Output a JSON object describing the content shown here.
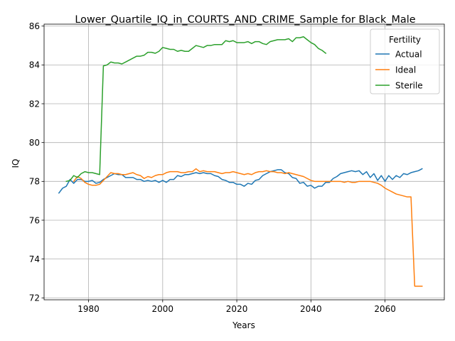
{
  "chart_data": {
    "type": "line",
    "title": "Lower_Quartile_IQ_in_COURTS_AND_CRIME_Sample for Black_Male",
    "xlabel": "Years",
    "ylabel": "IQ",
    "xlim": [
      1968,
      2076
    ],
    "ylim": [
      71.9,
      86.1
    ],
    "xticks": [
      1980,
      2000,
      2020,
      2040,
      2060
    ],
    "yticks": [
      72,
      74,
      76,
      78,
      80,
      82,
      84,
      86
    ],
    "grid": true,
    "legend": {
      "title": "Fertility",
      "placement": "top-right"
    },
    "series": [
      {
        "name": "Actual",
        "color": "#1f77b4",
        "x": [
          1972,
          1973,
          1974,
          1975,
          1976,
          1977,
          1978,
          1979,
          1980,
          1981,
          1982,
          1983,
          1984,
          1985,
          1986,
          1987,
          1988,
          1989,
          1990,
          1991,
          1992,
          1993,
          1994,
          1995,
          1996,
          1997,
          1998,
          1999,
          2000,
          2001,
          2002,
          2003,
          2004,
          2005,
          2006,
          2007,
          2008,
          2009,
          2010,
          2011,
          2012,
          2013,
          2014,
          2015,
          2016,
          2017,
          2018,
          2019,
          2020,
          2021,
          2022,
          2023,
          2024,
          2025,
          2026,
          2027,
          2028,
          2029,
          2030,
          2031,
          2032,
          2033,
          2034,
          2035,
          2036,
          2037,
          2038,
          2039,
          2040,
          2041,
          2042,
          2043,
          2044,
          2045,
          2046,
          2047,
          2048,
          2049,
          2050,
          2051,
          2052,
          2053,
          2054,
          2055,
          2056,
          2057,
          2058,
          2059,
          2060,
          2061,
          2062,
          2063,
          2064,
          2065,
          2066,
          2067,
          2068,
          2069,
          2070
        ],
        "values": [
          77.4,
          77.65,
          77.75,
          78.1,
          77.9,
          78.1,
          78.1,
          78.0,
          78.0,
          78.05,
          77.9,
          77.95,
          78.1,
          78.2,
          78.3,
          78.4,
          78.35,
          78.35,
          78.2,
          78.2,
          78.2,
          78.1,
          78.1,
          78.0,
          78.05,
          78.0,
          78.05,
          77.95,
          78.05,
          77.95,
          78.1,
          78.1,
          78.3,
          78.25,
          78.35,
          78.35,
          78.4,
          78.45,
          78.4,
          78.45,
          78.4,
          78.4,
          78.3,
          78.25,
          78.1,
          78.05,
          77.95,
          77.95,
          77.85,
          77.85,
          77.75,
          77.9,
          77.85,
          78.05,
          78.1,
          78.3,
          78.4,
          78.5,
          78.55,
          78.6,
          78.6,
          78.45,
          78.4,
          78.2,
          78.15,
          77.9,
          77.95,
          77.75,
          77.8,
          77.65,
          77.75,
          77.75,
          77.95,
          77.95,
          78.15,
          78.25,
          78.4,
          78.45,
          78.5,
          78.55,
          78.5,
          78.55,
          78.35,
          78.5,
          78.2,
          78.4,
          78.05,
          78.3,
          78.0,
          78.3,
          78.1,
          78.3,
          78.2,
          78.4,
          78.35,
          78.45,
          78.5,
          78.55,
          78.65
        ]
      },
      {
        "name": "Ideal",
        "color": "#ff7f0e",
        "x": [
          1976,
          1977,
          1978,
          1979,
          1980,
          1981,
          1982,
          1983,
          1984,
          1985,
          1986,
          1987,
          1988,
          1989,
          1990,
          1991,
          1992,
          1993,
          1994,
          1995,
          1996,
          1997,
          1998,
          1999,
          2000,
          2001,
          2002,
          2003,
          2004,
          2005,
          2006,
          2007,
          2008,
          2009,
          2010,
          2011,
          2012,
          2013,
          2014,
          2015,
          2016,
          2017,
          2018,
          2019,
          2020,
          2021,
          2022,
          2023,
          2024,
          2025,
          2026,
          2027,
          2028,
          2029,
          2030,
          2031,
          2032,
          2033,
          2034,
          2035,
          2036,
          2037,
          2038,
          2039,
          2040,
          2041,
          2042,
          2043,
          2044,
          2045,
          2046,
          2047,
          2048,
          2049,
          2050,
          2051,
          2052,
          2053,
          2054,
          2055,
          2056,
          2057,
          2058,
          2059,
          2060,
          2061,
          2062,
          2063,
          2064,
          2065,
          2066,
          2067,
          2068,
          2069,
          2070
        ],
        "values": [
          78.0,
          78.25,
          78.15,
          77.95,
          77.85,
          77.8,
          77.8,
          77.85,
          78.05,
          78.25,
          78.45,
          78.4,
          78.4,
          78.35,
          78.35,
          78.4,
          78.45,
          78.35,
          78.3,
          78.15,
          78.25,
          78.2,
          78.3,
          78.35,
          78.35,
          78.45,
          78.5,
          78.5,
          78.5,
          78.45,
          78.45,
          78.5,
          78.5,
          78.65,
          78.5,
          78.55,
          78.5,
          78.5,
          78.5,
          78.45,
          78.4,
          78.45,
          78.45,
          78.5,
          78.45,
          78.4,
          78.35,
          78.4,
          78.35,
          78.45,
          78.5,
          78.5,
          78.55,
          78.5,
          78.5,
          78.45,
          78.45,
          78.4,
          78.45,
          78.4,
          78.35,
          78.3,
          78.25,
          78.15,
          78.05,
          78.0,
          78.0,
          78.0,
          78.0,
          78.0,
          78.0,
          78.0,
          78.0,
          77.95,
          78.0,
          77.95,
          77.95,
          78.0,
          78.0,
          78.0,
          78.0,
          77.95,
          77.9,
          77.8,
          77.65,
          77.55,
          77.45,
          77.35,
          77.3,
          77.25,
          77.2,
          77.2,
          72.6,
          72.6,
          72.6
        ]
      },
      {
        "name": "Sterile",
        "color": "#2ca02c",
        "x": [
          1974,
          1975,
          1976,
          1977,
          1978,
          1979,
          1980,
          1981,
          1982,
          1983,
          1984,
          1985,
          1986,
          1987,
          1988,
          1989,
          1990,
          1991,
          1992,
          1993,
          1994,
          1995,
          1996,
          1997,
          1998,
          1999,
          2000,
          2001,
          2002,
          2003,
          2004,
          2005,
          2006,
          2007,
          2008,
          2009,
          2010,
          2011,
          2012,
          2013,
          2014,
          2015,
          2016,
          2017,
          2018,
          2019,
          2020,
          2021,
          2022,
          2023,
          2024,
          2025,
          2026,
          2027,
          2028,
          2029,
          2030,
          2031,
          2032,
          2033,
          2034,
          2035,
          2036,
          2037,
          2038,
          2039,
          2040,
          2041,
          2042,
          2043,
          2044
        ],
        "values": [
          78.0,
          78.05,
          78.3,
          78.2,
          78.4,
          78.5,
          78.45,
          78.45,
          78.4,
          78.35,
          83.95,
          84.0,
          84.15,
          84.1,
          84.1,
          84.05,
          84.15,
          84.25,
          84.35,
          84.45,
          84.45,
          84.5,
          84.65,
          84.65,
          84.6,
          84.7,
          84.9,
          84.85,
          84.8,
          84.8,
          84.7,
          84.75,
          84.7,
          84.7,
          84.85,
          85.0,
          84.95,
          84.9,
          85.0,
          85.0,
          85.05,
          85.05,
          85.05,
          85.25,
          85.2,
          85.25,
          85.15,
          85.15,
          85.15,
          85.2,
          85.1,
          85.2,
          85.2,
          85.1,
          85.05,
          85.2,
          85.25,
          85.3,
          85.3,
          85.3,
          85.35,
          85.2,
          85.4,
          85.4,
          85.45,
          85.3,
          85.15,
          85.05,
          84.85,
          84.75,
          84.6
        ]
      }
    ]
  }
}
